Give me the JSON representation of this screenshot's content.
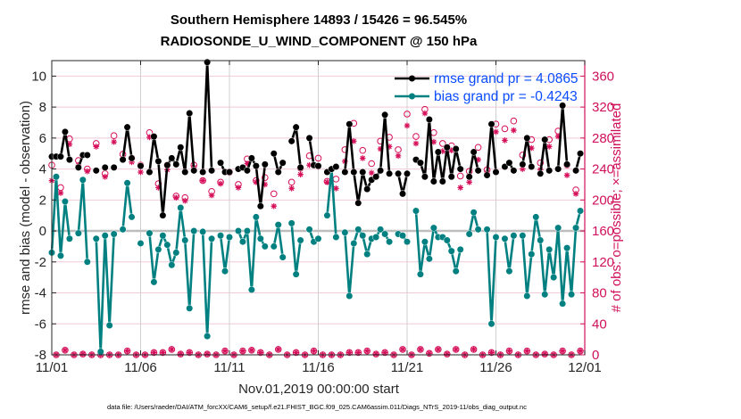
{
  "chart_data": {
    "type": "line",
    "title": "Southern Hemisphere 14893 / 15426 = 96.545%",
    "subtitle": "RADIOSONDE_U_WIND_COMPONENT @ 150 hPa",
    "xlabel": "Nov.01,2019 00:00:00 start",
    "ylabel": "rmse and bias (model - observation)",
    "ylabel_right": "# of obs: o=possible; ×=assimilated",
    "footnote": "data file: /Users/raeder/DAI/ATM_forcXX/CAM6_setup/f.e21.FHIST_BGC.f09_025.CAM6assim.011/Diags_NTrS_2019-11/obs_diag_output.nc",
    "x_unit": "days since Nov.01,2019 00:00",
    "time_step_hours": 6,
    "xlim": [
      0,
      30
    ],
    "x_ticks": [
      0,
      5,
      10,
      15,
      20,
      25,
      30
    ],
    "x_tick_labels": [
      "11/01",
      "11/06",
      "11/11",
      "11/16",
      "11/21",
      "11/26",
      "12/01"
    ],
    "ylim": [
      -8,
      11
    ],
    "y_ticks": [
      -8,
      -6,
      -4,
      -2,
      0,
      2,
      4,
      6,
      8,
      10
    ],
    "y_tick_labels": [
      "-8",
      "-6",
      "-4",
      "-2",
      "0",
      "2",
      "4",
      "6",
      "8",
      "10"
    ],
    "ylim_right": [
      0,
      380
    ],
    "y_ticks_right": [
      0,
      40,
      80,
      120,
      160,
      200,
      240,
      280,
      320,
      360
    ],
    "y_tick_labels_right": [
      "0",
      "40",
      "80",
      "120",
      "160",
      "200",
      "240",
      "280",
      "320",
      "360"
    ],
    "grid": true,
    "legend_position": "top-right",
    "legend": [
      "rmse grand pr = 4.0865",
      "bias grand pr = -0.4243"
    ],
    "colors": {
      "rmse": "#000000",
      "bias": "#008080",
      "obs": "#d6105a",
      "zero_line": "#bdbdbd",
      "grid_h": "#f2c9d8",
      "grid_v": "#d0d0d0",
      "legend_text": "#0a4cff"
    },
    "series": [
      {
        "name": "rmse",
        "axis": "left",
        "values": [
          4.8,
          4.8,
          4.8,
          6.4,
          4.6,
          null,
          4.1,
          4.9,
          4.9,
          null,
          3.9,
          null,
          4.1,
          null,
          4.1,
          null,
          4.6,
          6.7,
          4.7,
          null,
          4.2,
          null,
          3.8,
          6.1,
          4.5,
          1.0,
          4.25,
          4.7,
          4.3,
          5.4,
          3.8,
          7.6,
          3.9,
          null,
          3.8,
          10.9,
          3.9,
          null,
          4.4,
          3.8,
          3.8,
          null,
          4.0,
          4.1,
          3.9,
          4.7,
          4.2,
          1.6,
          4.3,
          null,
          5.0,
          3.8,
          4.4,
          null,
          5.8,
          6.7,
          4.1,
          null,
          6.0,
          4.25,
          4.2,
          null,
          3.8,
          4.0,
          4.15,
          null,
          3.8,
          6.9,
          3.8,
          1.8,
          3.8,
          2.7,
          3.3,
          3.5,
          3.9,
          7.5,
          3.7,
          null,
          3.7,
          2.4,
          3.7,
          null,
          4.6,
          4.4,
          3.5,
          7.2,
          3.2,
          5.1,
          3.2,
          5.4,
          3.5,
          5.3,
          4.0,
          null,
          3.5,
          5.1,
          3.9,
          null,
          3.6,
          6.9,
          3.8,
          null,
          4.15,
          4.4,
          3.9,
          null,
          4.3,
          6.0,
          4.15,
          null,
          3.7,
          5.9,
          3.9,
          null,
          4.0,
          8.1,
          4.3,
          null,
          3.9,
          5.0
        ]
      },
      {
        "name": "bias",
        "axis": "left",
        "values": [
          -1.4,
          3.5,
          -1.6,
          1.9,
          -0.5,
          null,
          -0.15,
          3.3,
          -2.0,
          null,
          -0.5,
          -7.8,
          -0.3,
          -6.1,
          -0.2,
          null,
          0.1,
          3.1,
          0.9,
          null,
          -0.8,
          null,
          -0.15,
          -3.3,
          -1.2,
          -0.3,
          -0.9,
          -2.2,
          -1.4,
          1.5,
          -0.6,
          -5.0,
          0,
          null,
          -0.05,
          -6.8,
          -0.5,
          null,
          -0.3,
          -2.6,
          -0.4,
          null,
          0,
          -0.7,
          0,
          -3.8,
          0.9,
          -0.5,
          -1.0,
          null,
          -1.0,
          0.4,
          -1.7,
          null,
          0.5,
          -2.8,
          -0.6,
          null,
          0.1,
          -0.7,
          -0.5,
          null,
          1.0,
          4.0,
          -0.4,
          null,
          -0.1,
          -4.2,
          -0.8,
          0.1,
          -0.3,
          -1.5,
          -0.5,
          -0.4,
          0.1,
          -0.2,
          -0.7,
          null,
          -0.2,
          -0.3,
          -0.7,
          null,
          1.3,
          -2.8,
          -0.7,
          -1.8,
          0.2,
          -0.4,
          -0.4,
          -0.6,
          -1.3,
          -2.6,
          -1.2,
          null,
          -0.2,
          1.2,
          0.1,
          null,
          0.1,
          -6.0,
          -0.4,
          null,
          -0.5,
          -2.6,
          -0.3,
          null,
          -0.3,
          -4.2,
          -1.5,
          0.9,
          -0.6,
          -4.1,
          -1.2,
          -3.0,
          0.2,
          -4.7,
          -1.1,
          -4.1,
          0.2,
          1.3
        ]
      },
      {
        "name": "obs possible",
        "axis": "right",
        "marker": "o",
        "values": [
          245,
          0,
          216,
          6,
          279,
          0,
          251,
          1,
          240,
          0,
          273,
          0,
          234,
          0,
          283,
          0,
          259,
          5,
          254,
          0,
          245,
          0,
          287,
          3,
          221,
          3,
          245,
          7,
          205,
          1,
          203,
          3,
          245,
          0,
          225,
          1,
          211,
          0,
          223,
          5,
          236,
          0,
          220,
          5,
          253,
          6,
          225,
          3,
          229,
          0,
          208,
          7,
          null,
          0,
          223,
          3,
          241,
          0,
          257,
          5,
          254,
          0,
          224,
          0,
          227,
          0,
          265,
          3,
          299,
          3,
          264,
          5,
          247,
          1,
          276,
          3,
          281,
          0,
          265,
          7,
          311,
          0,
          282,
          7,
          317,
          2,
          287,
          7,
          273,
          1,
          270,
          7,
          231,
          0,
          237,
          7,
          268,
          0,
          239,
          3,
          298,
          0,
          292,
          5,
          302,
          0,
          258,
          5,
          278,
          0,
          248,
          1,
          278,
          0,
          289,
          5,
          245,
          0,
          213,
          5
        ]
      },
      {
        "name": "obs assimilated",
        "axis": "right",
        "marker": "*",
        "values": [
          225,
          0,
          209,
          6,
          272,
          0,
          245,
          1,
          237,
          0,
          269,
          0,
          230,
          0,
          275,
          0,
          254,
          5,
          249,
          0,
          236,
          0,
          281,
          3,
          216,
          3,
          239,
          7,
          203,
          1,
          199,
          3,
          242,
          0,
          225,
          1,
          206,
          0,
          221,
          5,
          235,
          0,
          216,
          5,
          247,
          6,
          223,
          3,
          220,
          0,
          192,
          7,
          null,
          0,
          215,
          3,
          233,
          0,
          245,
          5,
          243,
          0,
          223,
          0,
          215,
          0,
          250,
          3,
          276,
          3,
          254,
          5,
          235,
          1,
          266,
          3,
          269,
          0,
          257,
          7,
          296,
          0,
          273,
          7,
          312,
          2,
          275,
          7,
          263,
          1,
          264,
          7,
          216,
          0,
          223,
          7,
          252,
          0,
          235,
          3,
          288,
          0,
          277,
          5,
          290,
          0,
          240,
          5,
          267,
          0,
          239,
          1,
          269,
          0,
          282,
          5,
          232,
          0,
          208,
          5
        ]
      }
    ]
  }
}
